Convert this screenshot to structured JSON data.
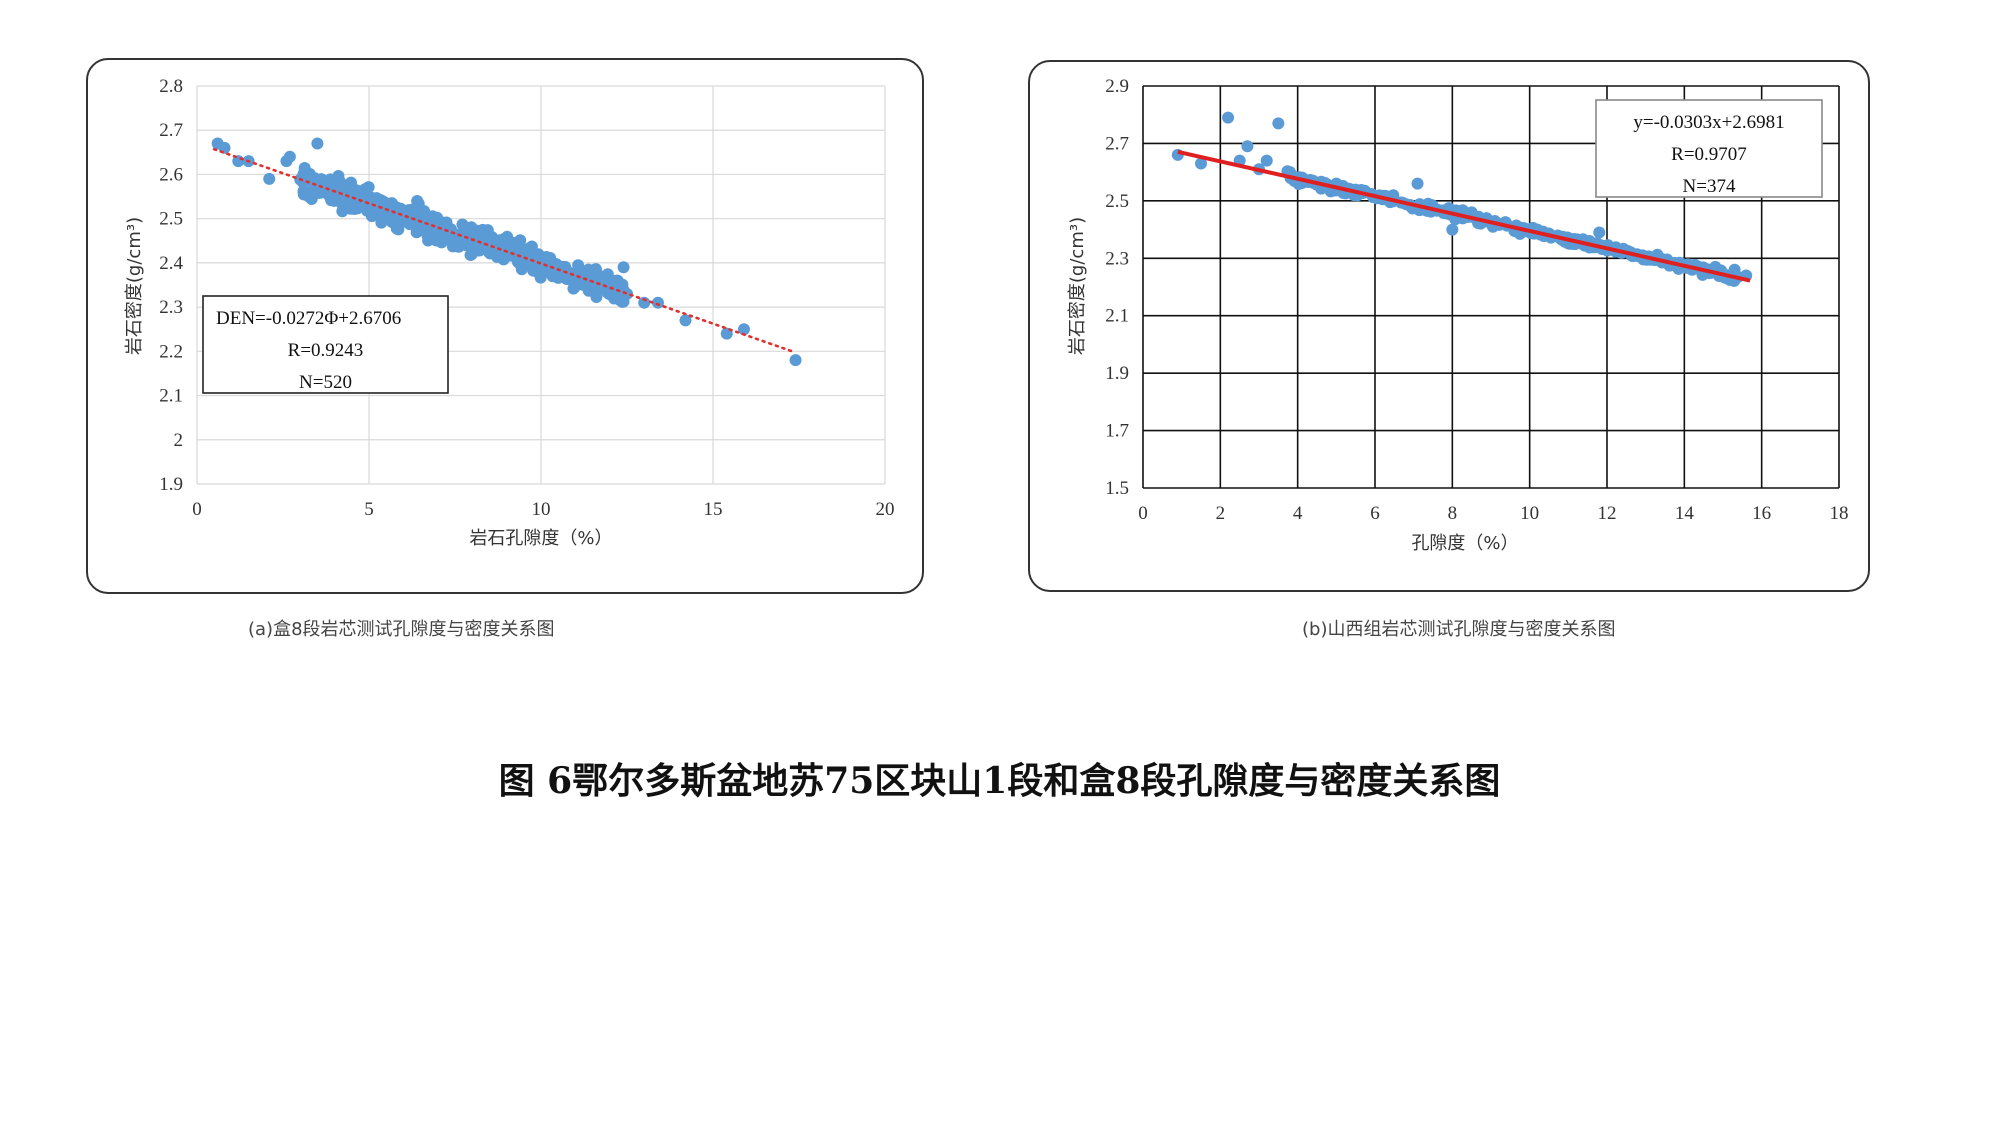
{
  "figure_title": "图 6鄂尔多斯盆地苏75区块山1段和盒8段孔隙度与密度关系图",
  "chart_data": [
    {
      "type": "scatter",
      "caption": "(a)盒8段岩芯测试孔隙度与密度关系图",
      "xlabel": "岩石孔隙度（%）",
      "ylabel": "岩石密度(g/cm³)",
      "xlim": [
        0,
        20
      ],
      "ylim": [
        1.9,
        2.8
      ],
      "x_ticks": [
        0,
        5,
        10,
        15,
        20
      ],
      "y_ticks": [
        1.9,
        2,
        2.1,
        2.2,
        2.3,
        2.4,
        2.5,
        2.6,
        2.7,
        2.8
      ],
      "grid": true,
      "trendline": {
        "slope": -0.0272,
        "intercept": 2.6706,
        "style": "dotted",
        "color": "#e03030",
        "x_range": [
          0.5,
          17.4
        ]
      },
      "annotation": [
        "DEN=-0.0272Φ+2.6706",
        "R=0.9243",
        "N=520"
      ],
      "point_color": "#5b9bd5",
      "point_count": 520,
      "points_sample": [
        [
          0.6,
          2.67
        ],
        [
          0.8,
          2.66
        ],
        [
          1.2,
          2.63
        ],
        [
          1.5,
          2.63
        ],
        [
          2.1,
          2.59
        ],
        [
          2.6,
          2.63
        ],
        [
          2.7,
          2.64
        ],
        [
          3.1,
          2.56
        ],
        [
          3.5,
          2.67
        ],
        [
          3.6,
          2.56
        ],
        [
          4.2,
          2.55
        ],
        [
          5.2,
          2.52
        ],
        [
          5.8,
          2.51
        ],
        [
          6.4,
          2.54
        ],
        [
          7.2,
          2.49
        ],
        [
          8.3,
          2.45
        ],
        [
          9.1,
          2.42
        ],
        [
          10.2,
          2.39
        ],
        [
          11.3,
          2.36
        ],
        [
          12.0,
          2.33
        ],
        [
          12.4,
          2.39
        ],
        [
          12.5,
          2.33
        ],
        [
          13.0,
          2.31
        ],
        [
          13.4,
          2.31
        ],
        [
          14.2,
          2.27
        ],
        [
          15.4,
          2.24
        ],
        [
          15.9,
          2.25
        ],
        [
          17.4,
          2.18
        ]
      ]
    },
    {
      "type": "scatter",
      "caption": "(b)山西组岩芯测试孔隙度与密度关系图",
      "xlabel": "孔隙度（%）",
      "ylabel": "岩石密度(g/cm³)",
      "xlim": [
        0,
        18
      ],
      "ylim": [
        1.5,
        2.9
      ],
      "x_ticks": [
        0,
        2,
        4,
        6,
        8,
        10,
        12,
        14,
        16,
        18
      ],
      "y_ticks": [
        1.5,
        1.7,
        1.9,
        2.1,
        2.3,
        2.5,
        2.7,
        2.9
      ],
      "grid": true,
      "trendline": {
        "slope": -0.0303,
        "intercept": 2.6981,
        "style": "solid",
        "color": "#e02020",
        "x_range": [
          0.9,
          15.7
        ]
      },
      "annotation": [
        "y=-0.0303x+2.6981",
        "R=0.9707",
        "N=374"
      ],
      "point_color": "#5b9bd5",
      "point_count": 374,
      "points_sample": [
        [
          0.9,
          2.66
        ],
        [
          1.5,
          2.63
        ],
        [
          2.2,
          2.79
        ],
        [
          2.5,
          2.64
        ],
        [
          2.7,
          2.69
        ],
        [
          3.0,
          2.61
        ],
        [
          3.2,
          2.64
        ],
        [
          3.5,
          2.77
        ],
        [
          3.8,
          2.6
        ],
        [
          4.4,
          2.57
        ],
        [
          5.0,
          2.56
        ],
        [
          6.2,
          2.51
        ],
        [
          7.1,
          2.56
        ],
        [
          8.0,
          2.4
        ],
        [
          8.5,
          2.46
        ],
        [
          9.1,
          2.43
        ],
        [
          10.2,
          2.4
        ],
        [
          11.8,
          2.39
        ],
        [
          12.4,
          2.32
        ],
        [
          13.2,
          2.3
        ],
        [
          14.2,
          2.26
        ],
        [
          14.8,
          2.27
        ],
        [
          15.3,
          2.26
        ],
        [
          15.6,
          2.24
        ]
      ]
    }
  ]
}
